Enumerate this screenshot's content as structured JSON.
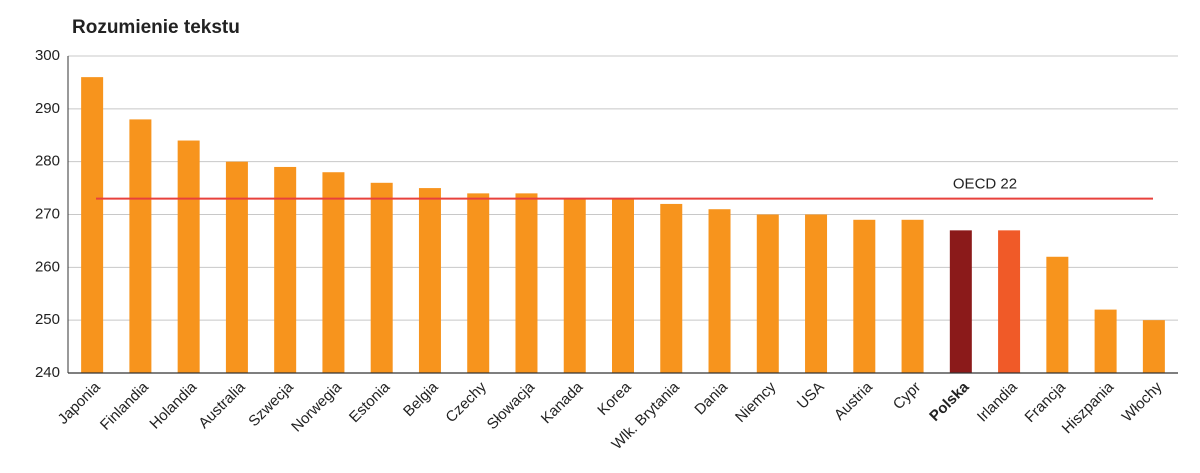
{
  "chart_data": {
    "type": "bar",
    "title": "Rozumienie tekstu",
    "categories": [
      "Japonia",
      "Finlandia",
      "Holandia",
      "Australia",
      "Szwecja",
      "Norwegia",
      "Estonia",
      "Belgia",
      "Czechy",
      "Słowacja",
      "Kanada",
      "Korea",
      "Wlk. Brytania",
      "Dania",
      "Niemcy",
      "USA",
      "Austria",
      "Cypr",
      "Polska",
      "Irlandia",
      "Francja",
      "Hiszpania",
      "Włochy"
    ],
    "values": [
      296,
      288,
      284,
      280,
      279,
      278,
      276,
      275,
      274,
      274,
      273,
      273,
      272,
      271,
      270,
      270,
      269,
      269,
      267,
      267,
      262,
      252,
      250
    ],
    "colors": [
      "#f7941d",
      "#f7941d",
      "#f7941d",
      "#f7941d",
      "#f7941d",
      "#f7941d",
      "#f7941d",
      "#f7941d",
      "#f7941d",
      "#f7941d",
      "#f7941d",
      "#f7941d",
      "#f7941d",
      "#f7941d",
      "#f7941d",
      "#f7941d",
      "#f7941d",
      "#f7941d",
      "#8b1a1a",
      "#f05a28",
      "#f7941d",
      "#f7941d",
      "#f7941d"
    ],
    "bold_category_index": 18,
    "reference_line": {
      "label": "OECD 22",
      "value": 273,
      "color": "#e8413c"
    },
    "ylim": [
      240,
      300
    ],
    "yticks": [
      240,
      250,
      260,
      270,
      280,
      290,
      300
    ],
    "grid": true
  }
}
